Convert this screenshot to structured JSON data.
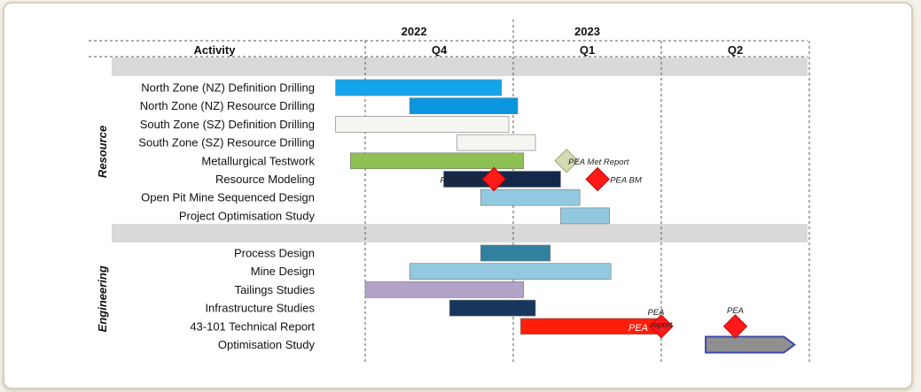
{
  "chart_data": {
    "type": "gantt",
    "years": [
      {
        "label": "2022",
        "quarters": [
          "Q4"
        ]
      },
      {
        "label": "2023",
        "quarters": [
          "Q1",
          "Q2"
        ]
      }
    ],
    "quarters": [
      "Q4",
      "Q1",
      "Q2"
    ],
    "activity_header": "Activity",
    "sections": [
      {
        "name": "Resource",
        "tasks": [
          {
            "label": "North Zone (NZ) Definition Drilling",
            "start": 0.8,
            "end": 1.92,
            "color": "#13a5ec"
          },
          {
            "label": "North Zone (NZ) Resource Drilling",
            "start": 1.3,
            "end": 2.03,
            "color": "#0d96e0"
          },
          {
            "label": "South Zone (SZ) Definition Drilling",
            "start": 0.8,
            "end": 1.97,
            "color": "#f5f5f2"
          },
          {
            "label": "South Zone (SZ) Resource Drilling",
            "start": 1.62,
            "end": 2.15,
            "color": "#f5f5f2"
          },
          {
            "label": "Metallurgical Testwork",
            "start": 0.9,
            "end": 2.07,
            "color": "#8dc154"
          },
          {
            "label": "Resource Modeling",
            "start": 1.53,
            "end": 2.32,
            "color": "#14294a"
          },
          {
            "label": "Open Pit Mine Sequenced Design",
            "start": 1.78,
            "end": 2.45,
            "color": "#93c8e1"
          },
          {
            "label": "Project Optimisation Study",
            "start": 2.32,
            "end": 2.65,
            "color": "#93c8e1"
          }
        ]
      },
      {
        "name": "Engineering",
        "tasks": [
          {
            "label": "Process Design",
            "start": 1.78,
            "end": 2.25,
            "color": "#31809e"
          },
          {
            "label": "Mine Design",
            "start": 1.3,
            "end": 2.66,
            "color": "#93c8e1"
          },
          {
            "label": "Tailings Studies",
            "start": 1.0,
            "end": 2.07,
            "color": "#b1a2c7"
          },
          {
            "label": "Infrastructure Studies",
            "start": 1.57,
            "end": 2.15,
            "color": "#17365d"
          },
          {
            "label": "43-101 Technical Report",
            "start": 2.05,
            "end": 3.0,
            "color": "#ff1e0a"
          },
          {
            "label": "Optimisation Study",
            "start": 3.3,
            "end": 3.9,
            "color": "#909090"
          }
        ]
      }
    ],
    "milestones": [
      {
        "label": "PEA Met Report",
        "x": 2.36,
        "row": "Metallurgical Testwork",
        "shape": "diamond",
        "color": "#d6dbb4"
      },
      {
        "label": "Prelim BM",
        "x": 1.87,
        "row": "Resource Modeling",
        "shape": "diamond",
        "color": "#ff1a1a"
      },
      {
        "label": "PEA BM",
        "x": 2.57,
        "row": "Resource Modeling",
        "shape": "diamond",
        "color": "#ff1a1a"
      },
      {
        "label": "PEA report",
        "x": 3.0,
        "row": "43-101 Technical Report",
        "shape": "diamond",
        "color": "#ff1a1a"
      },
      {
        "label": "PEA",
        "x": 3.5,
        "row": "43-101 Technical Report",
        "shape": "diamond",
        "color": "#ff1a1a"
      }
    ],
    "bar_annotations": [
      {
        "row": "43-101 Technical Report",
        "text": "PEA"
      }
    ],
    "grid": "dashed-quarter-boundaries"
  }
}
